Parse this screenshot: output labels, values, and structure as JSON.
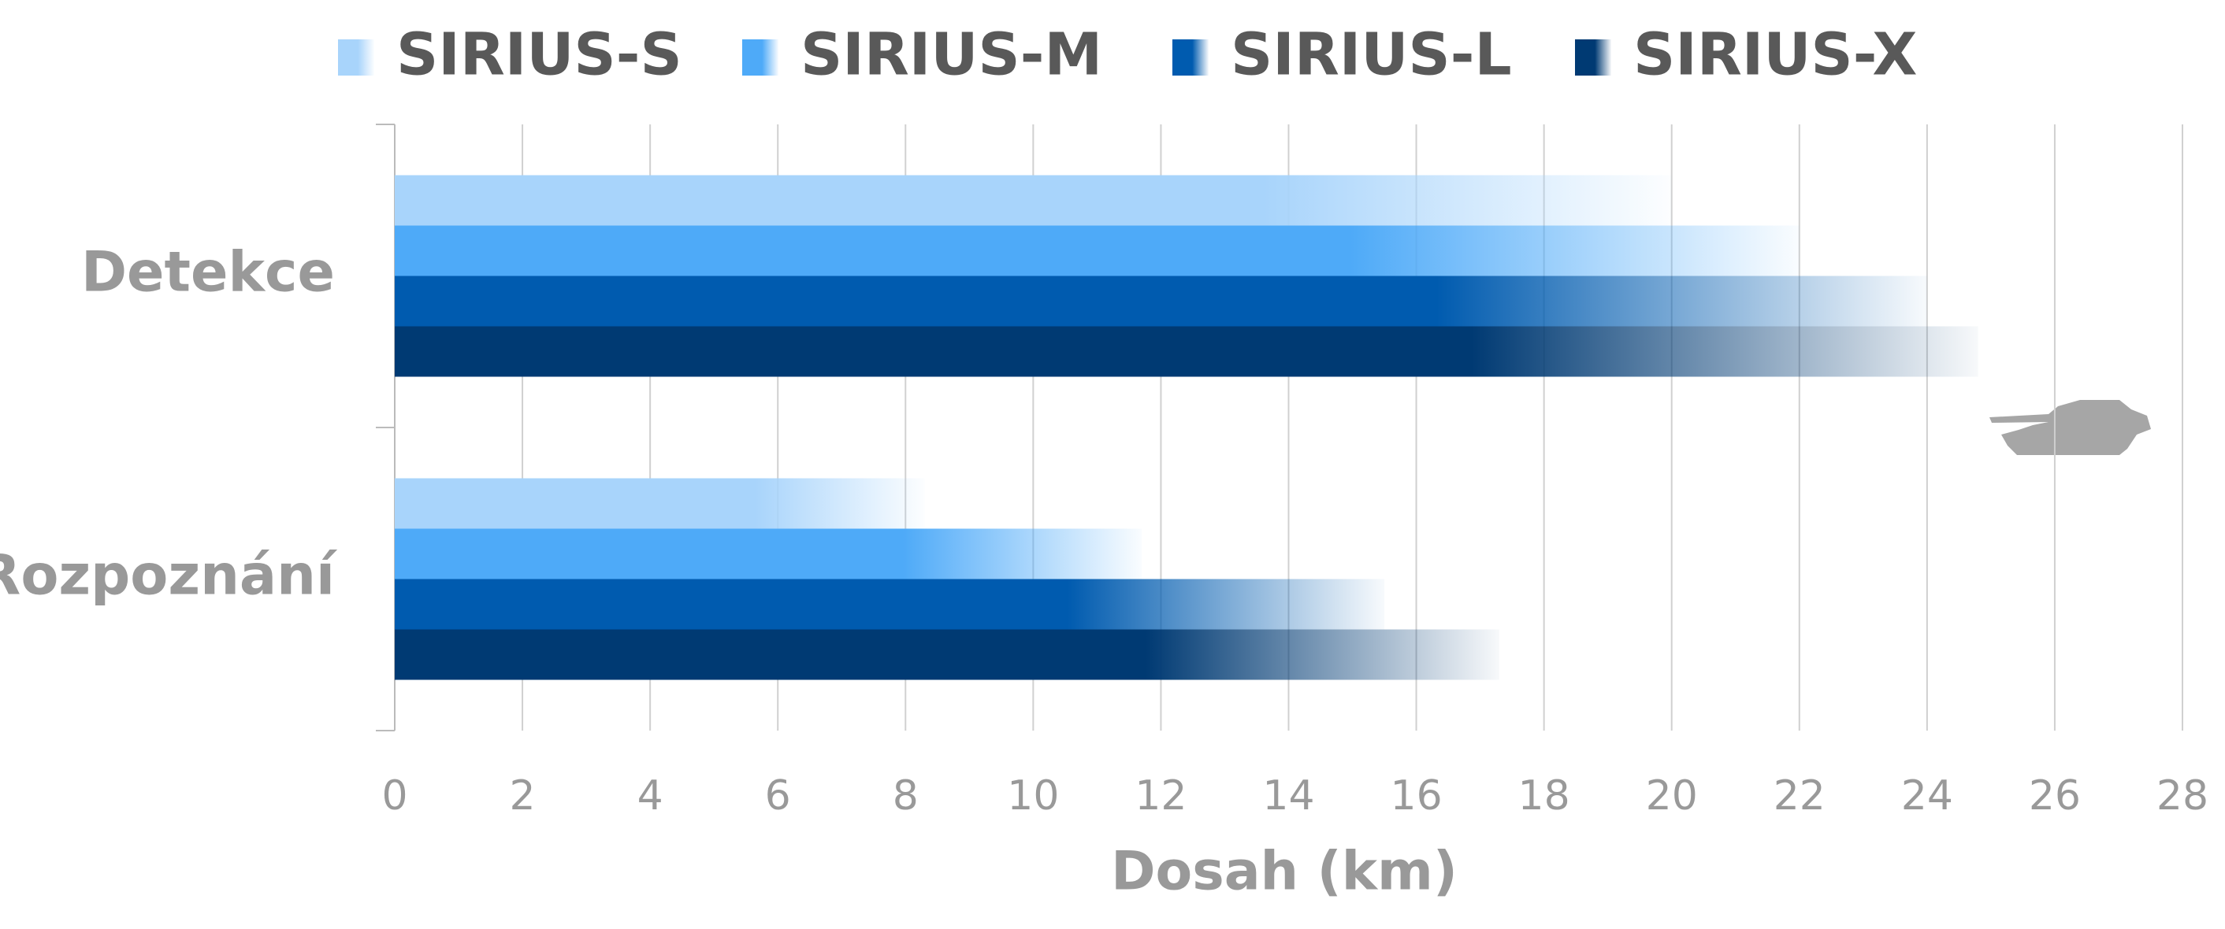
{
  "chart_data": {
    "type": "hbar",
    "categories": [
      "Detekce",
      "Rozpoznání"
    ],
    "series": [
      {
        "name": "SIRIUS-S",
        "color": "#a8d4fb",
        "values": [
          20,
          8.3
        ]
      },
      {
        "name": "SIRIUS-M",
        "color": "#4eaaf8",
        "values": [
          22,
          11.7
        ]
      },
      {
        "name": "SIRIUS-L",
        "color": "#005baf",
        "values": [
          24,
          15.5
        ]
      },
      {
        "name": "SIRIUS-X",
        "color": "#003a73",
        "values": [
          24.8,
          17.3
        ]
      }
    ],
    "xlabel": "Dosah (km)",
    "xlim": [
      0,
      28
    ],
    "xticks": [
      0,
      2,
      4,
      6,
      8,
      10,
      12,
      14,
      16,
      18,
      20,
      22,
      24,
      26,
      28
    ],
    "grid": true,
    "legend": "top"
  }
}
